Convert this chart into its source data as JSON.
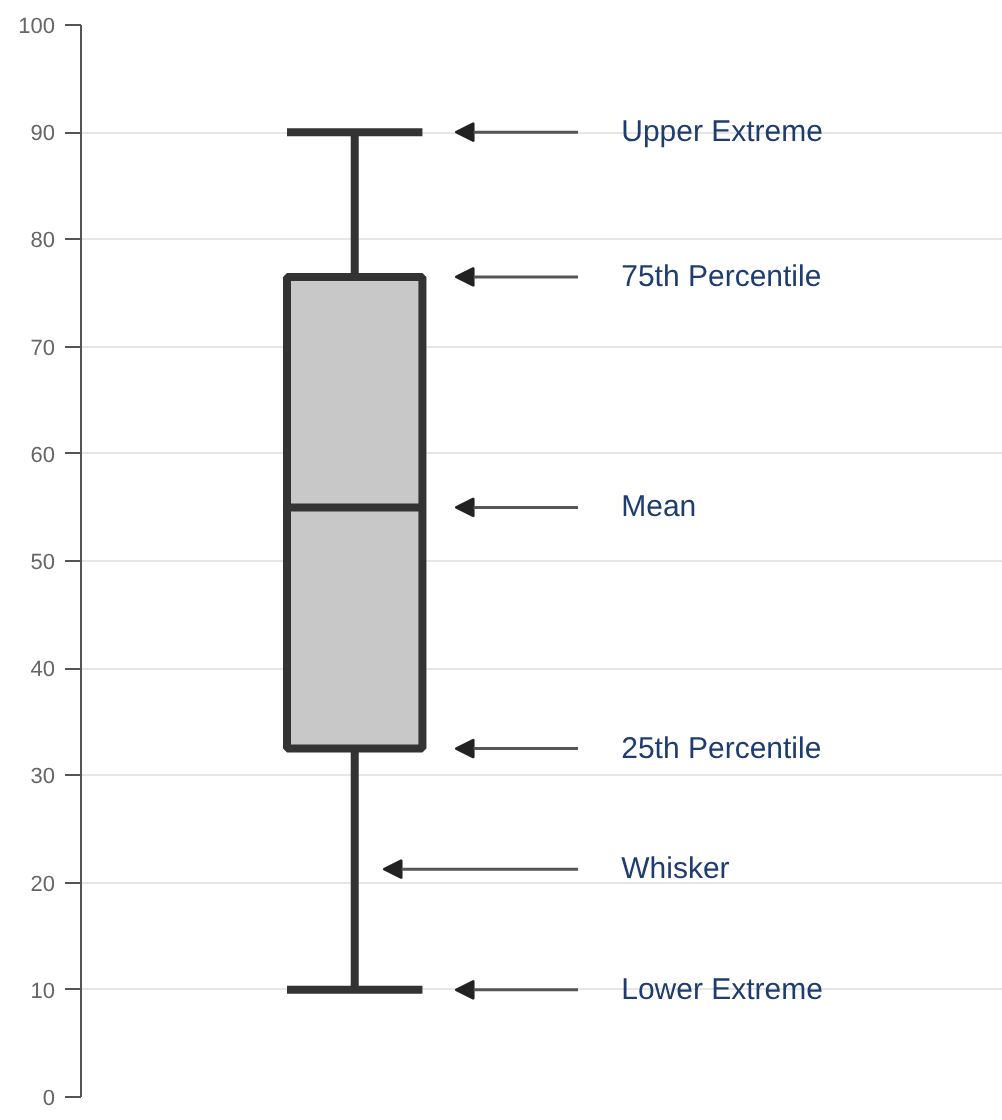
{
  "chart_data": {
    "type": "box",
    "categories": [
      null
    ],
    "boxes": [
      {
        "low": 10,
        "q1": 32.5,
        "median": 55,
        "q3": 76.5,
        "high": 90
      }
    ],
    "colors": [
      "#c8c8c8"
    ],
    "ylim": [
      0,
      100
    ],
    "yticks": [
      0,
      10,
      20,
      30,
      40,
      50,
      60,
      70,
      80,
      90,
      100
    ],
    "grid": "y",
    "annotations": [
      "Upper Extreme",
      "75th Percentile",
      "Mean",
      "25th Percentile",
      "Whisker",
      "Lower Extreme"
    ]
  }
}
